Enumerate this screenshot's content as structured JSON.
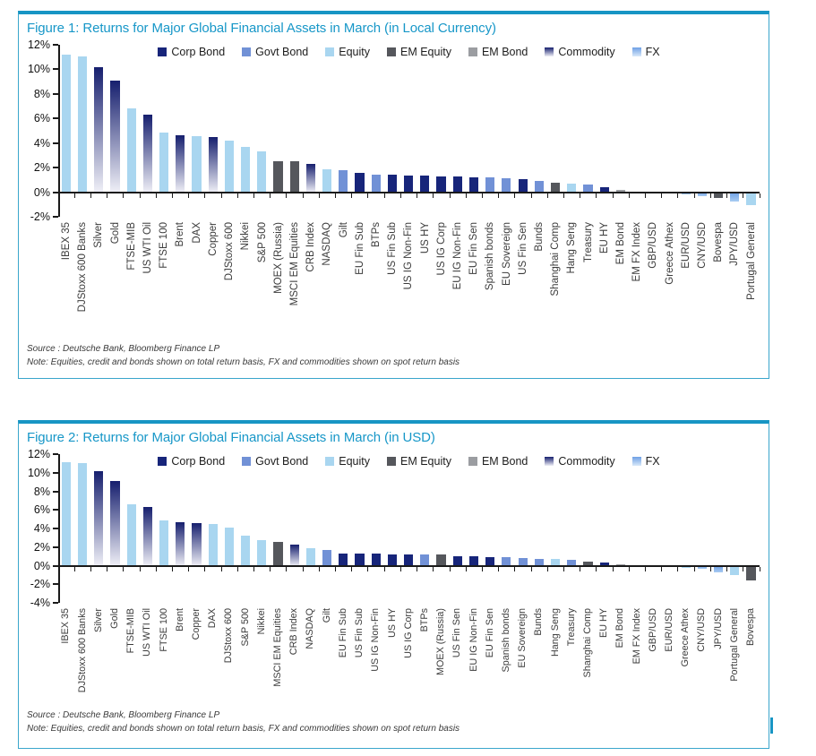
{
  "colors": {
    "accent_teal": "#1795c4",
    "corp": "#17257a",
    "govt": "#7191d6",
    "equity": "#a9d6f0",
    "em_equity": "#55575c",
    "em_bond": "#9b9da1",
    "commodity_top": "#161f6e",
    "commodity_bottom": "#f0f0f7",
    "fx_top": "#6fa0e5",
    "fx_bottom": "#d9e9f9",
    "fx_bottom_neg": "#a9ccf2",
    "axis": "#1a1a1a"
  },
  "figures": [
    {
      "title": "Figure 1: Returns for Major Global Financial Assets in March (in Local Currency)",
      "source": "Source : Deutsche Bank, Bloomberg Finance LP",
      "note": "Note: Equities, credit and bonds shown on total return basis, FX and commodities shown on spot return basis"
    },
    {
      "title": "Figure 2: Returns for Major Global Financial Assets in March (in USD)",
      "source": "Source : Deutsche Bank, Bloomberg Finance LP",
      "note": "Note: Equities, credit and bonds shown on total return basis, FX and commodities shown on spot return basis"
    }
  ],
  "chart_data": [
    {
      "type": "bar",
      "title": "Figure 1: Returns for Major Global Financial Assets in March (in Local Currency)",
      "xlabel": "",
      "ylabel": "",
      "ylim": [
        -2,
        12
      ],
      "grid": false,
      "legend_position": "top-center",
      "yticks": [
        "12%",
        "10%",
        "8%",
        "6%",
        "4%",
        "2%",
        "0%",
        "-2%"
      ],
      "legend": [
        {
          "label": "Corp Bond",
          "key": "corp"
        },
        {
          "label": "Govt Bond",
          "key": "govt"
        },
        {
          "label": "Equity",
          "key": "equity"
        },
        {
          "label": "EM Equity",
          "key": "em_equity"
        },
        {
          "label": "EM Bond",
          "key": "em_bond"
        },
        {
          "label": "Commodity",
          "key": "commodity"
        },
        {
          "label": "FX",
          "key": "fx"
        }
      ],
      "categories": [
        "IBEX 35",
        "DJStoxx 600 Banks",
        "Silver",
        "Gold",
        "FTSE-MIB",
        "US WTI Oil",
        "FTSE 100",
        "Brent",
        "DAX",
        "Copper",
        "DJStoxx 600",
        "Nikkei",
        "S&P 500",
        "MOEX (Russia)",
        "MSCI EM Equities",
        "CRB Index",
        "NASDAQ",
        "Gilt",
        "EU Fin Sub",
        "BTPs",
        "US Fin Sub",
        "US IG Non-Fin",
        "US HY",
        "US IG Corp",
        "EU IG Non-Fin",
        "EU Fin Sen",
        "Spanish bonds",
        "EU Sovereign",
        "US Fin Sen",
        "Bunds",
        "Shanghai Comp",
        "Hang Seng",
        "Treasury",
        "EU HY",
        "EM Bond",
        "EM FX Index",
        "GBP/USD",
        "Greece Athex",
        "EUR/USD",
        "CNY/USD",
        "Bovespa",
        "JPY/USD",
        "Portugal General"
      ],
      "values": [
        11.2,
        11.05,
        10.15,
        9.1,
        6.8,
        6.3,
        4.85,
        4.65,
        4.6,
        4.5,
        4.2,
        3.7,
        3.3,
        2.5,
        2.5,
        2.3,
        1.9,
        1.8,
        1.6,
        1.45,
        1.4,
        1.35,
        1.35,
        1.3,
        1.25,
        1.2,
        1.2,
        1.15,
        1.1,
        0.95,
        0.8,
        0.7,
        0.6,
        0.4,
        0.2,
        0.05,
        -0.05,
        -0.1,
        -0.15,
        -0.3,
        -0.5,
        -0.75,
        -1.05
      ],
      "types": [
        "equity",
        "equity",
        "commodity",
        "commodity",
        "equity",
        "commodity",
        "equity",
        "commodity",
        "equity",
        "commodity",
        "equity",
        "equity",
        "equity",
        "em_equity",
        "em_equity",
        "commodity",
        "equity",
        "govt",
        "corp",
        "govt",
        "corp",
        "corp",
        "corp",
        "corp",
        "corp",
        "corp",
        "govt",
        "govt",
        "corp",
        "govt",
        "em_equity",
        "equity",
        "govt",
        "corp",
        "em_bond",
        "fx",
        "fx",
        "equity",
        "fx",
        "fx",
        "em_equity",
        "fx",
        "equity"
      ]
    },
    {
      "type": "bar",
      "title": "Figure 2: Returns for Major Global Financial Assets in March (in USD)",
      "xlabel": "",
      "ylabel": "",
      "ylim": [
        -4,
        12
      ],
      "grid": false,
      "legend_position": "top-center",
      "yticks": [
        "12%",
        "10%",
        "8%",
        "6%",
        "4%",
        "2%",
        "0%",
        "-2%",
        "-4%"
      ],
      "legend": [
        {
          "label": "Corp Bond",
          "key": "corp"
        },
        {
          "label": "Govt Bond",
          "key": "govt"
        },
        {
          "label": "Equity",
          "key": "equity"
        },
        {
          "label": "EM Equity",
          "key": "em_equity"
        },
        {
          "label": "EM Bond",
          "key": "em_bond"
        },
        {
          "label": "Commodity",
          "key": "commodity"
        },
        {
          "label": "FX",
          "key": "fx"
        }
      ],
      "categories": [
        "IBEX 35",
        "DJStoxx 600 Banks",
        "Silver",
        "Gold",
        "FTSE-MIB",
        "US WTI Oil",
        "FTSE 100",
        "Brent",
        "Copper",
        "DAX",
        "DJStoxx 600",
        "S&P 500",
        "Nikkei",
        "MSCI EM Equities",
        "CRB Index",
        "NASDAQ",
        "Gilt",
        "EU Fin Sub",
        "US Fin Sub",
        "US IG Non-Fin",
        "US HY",
        "US IG Corp",
        "BTPs",
        "MOEX (Russia)",
        "US Fin Sen",
        "EU IG Non-Fin",
        "EU Fin Sen",
        "Spanish bonds",
        "EU Sovereign",
        "Bunds",
        "Hang Seng",
        "Treasury",
        "Shanghai Comp",
        "EU HY",
        "EM Bond",
        "EM FX Index",
        "GBP/USD",
        "EUR/USD",
        "Greece Athex",
        "CNY/USD",
        "JPY/USD",
        "Portugal General",
        "Bovespa"
      ],
      "values": [
        11.1,
        11.0,
        10.2,
        9.15,
        6.65,
        6.35,
        4.85,
        4.65,
        4.55,
        4.45,
        4.1,
        3.25,
        2.75,
        2.55,
        2.3,
        1.9,
        1.7,
        1.35,
        1.3,
        1.3,
        1.25,
        1.25,
        1.2,
        1.2,
        1.0,
        1.0,
        0.95,
        0.9,
        0.85,
        0.75,
        0.7,
        0.6,
        0.45,
        0.35,
        0.15,
        -0.05,
        -0.1,
        -0.15,
        -0.2,
        -0.35,
        -0.7,
        -1.0,
        -1.6
      ],
      "types": [
        "equity",
        "equity",
        "commodity",
        "commodity",
        "equity",
        "commodity",
        "equity",
        "commodity",
        "commodity",
        "equity",
        "equity",
        "equity",
        "equity",
        "em_equity",
        "commodity",
        "equity",
        "govt",
        "corp",
        "corp",
        "corp",
        "corp",
        "corp",
        "govt",
        "em_equity",
        "corp",
        "corp",
        "corp",
        "govt",
        "govt",
        "govt",
        "equity",
        "govt",
        "em_equity",
        "corp",
        "em_bond",
        "fx",
        "fx",
        "fx",
        "equity",
        "fx",
        "fx",
        "equity",
        "em_equity"
      ]
    }
  ]
}
